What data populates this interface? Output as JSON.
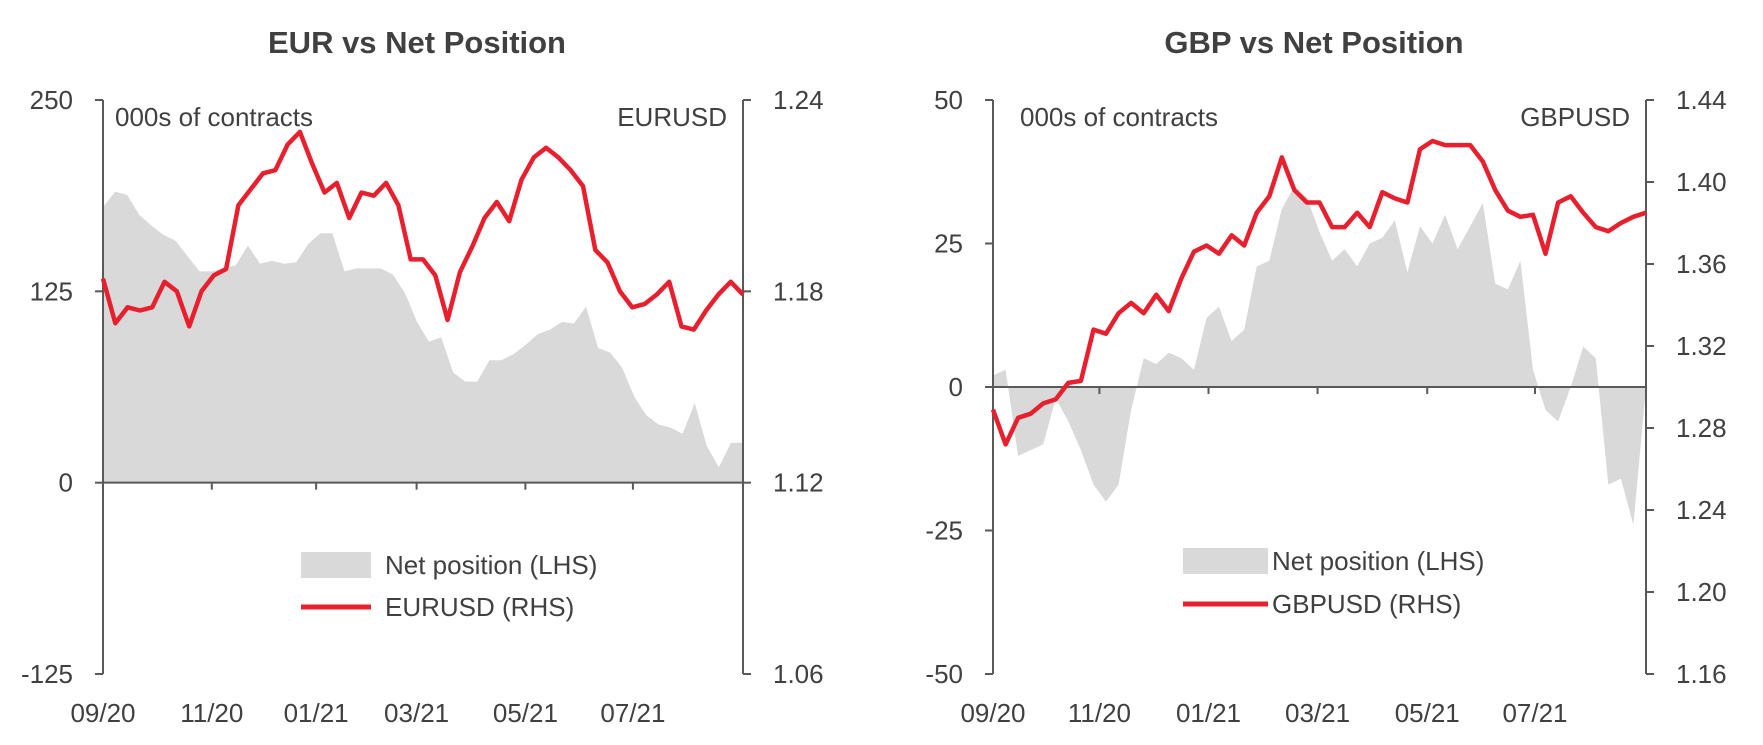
{
  "chart_data": [
    {
      "type": "area",
      "title": "EUR vs Net Position",
      "left_axis_note": "000s of contracts",
      "right_axis_note": "EURUSD",
      "ylim_left": [
        -125,
        250
      ],
      "yticks_left": [
        "-125",
        "0",
        "125",
        "250"
      ],
      "ylim_right": [
        1.06,
        1.24
      ],
      "yticks_right": [
        "1.06",
        "1.12",
        "1.18",
        "1.24"
      ],
      "x_tick_labels": [
        "09/20",
        "11/20",
        "01/21",
        "03/21",
        "05/21",
        "07/21"
      ],
      "legend": [
        "Net position (LHS)",
        "EURUSD (RHS)"
      ],
      "colors": {
        "net_position": "#d9d9d9",
        "price": "#e8202e",
        "axis": "#595959"
      },
      "series": [
        {
          "name": "Net position (LHS)",
          "axis": "left",
          "values": [
            180,
            190,
            188,
            175,
            168,
            162,
            158,
            148,
            138,
            138,
            140,
            142,
            155,
            143,
            145,
            143,
            144,
            156,
            163,
            163,
            138,
            140,
            140,
            140,
            136,
            124,
            105,
            92,
            95,
            72,
            66,
            66,
            80,
            80,
            84,
            90,
            97,
            100,
            105,
            104,
            115,
            88,
            85,
            75,
            56,
            44,
            38,
            36,
            32,
            52,
            24,
            10,
            26,
            26
          ]
        },
        {
          "name": "EURUSD (RHS)",
          "axis": "right",
          "values": [
            1.184,
            1.17,
            1.175,
            1.174,
            1.175,
            1.183,
            1.18,
            1.169,
            1.18,
            1.185,
            1.187,
            1.207,
            1.212,
            1.217,
            1.218,
            1.226,
            1.23,
            1.22,
            1.211,
            1.214,
            1.203,
            1.211,
            1.21,
            1.214,
            1.207,
            1.19,
            1.19,
            1.185,
            1.171,
            1.186,
            1.194,
            1.203,
            1.208,
            1.202,
            1.215,
            1.222,
            1.225,
            1.222,
            1.218,
            1.213,
            1.193,
            1.189,
            1.18,
            1.175,
            1.176,
            1.179,
            1.183,
            1.169,
            1.168,
            1.174,
            1.179,
            1.183,
            1.179
          ]
        }
      ]
    },
    {
      "type": "area",
      "title": "GBP vs Net Position",
      "left_axis_note": "000s of contracts",
      "right_axis_note": "GBPUSD",
      "ylim_left": [
        -50,
        50
      ],
      "yticks_left": [
        "-50",
        "-25",
        "0",
        "25",
        "50"
      ],
      "ylim_right": [
        1.16,
        1.44
      ],
      "yticks_right": [
        "1.16",
        "1.20",
        "1.24",
        "1.28",
        "1.32",
        "1.36",
        "1.40",
        "1.44"
      ],
      "x_tick_labels": [
        "09/20",
        "11/20",
        "01/21",
        "03/21",
        "05/21",
        "07/21"
      ],
      "legend": [
        "Net position (LHS)",
        "GBPUSD (RHS)"
      ],
      "colors": {
        "net_position": "#d9d9d9",
        "price": "#e8202e",
        "axis": "#595959"
      },
      "series": [
        {
          "name": "Net position (LHS)",
          "axis": "left",
          "values": [
            2,
            3,
            -12,
            -11,
            -10,
            -2,
            -6,
            -11,
            -17,
            -20,
            -17,
            -4,
            5,
            4,
            6,
            5,
            3,
            12,
            14,
            8,
            10,
            21,
            22,
            31,
            35,
            33,
            27,
            22,
            24,
            21,
            25,
            26,
            29,
            20,
            28,
            25,
            30,
            24,
            28,
            32,
            18,
            17,
            22,
            3,
            -4,
            -6,
            0,
            7,
            5,
            -17,
            -16,
            -24,
            0
          ]
        },
        {
          "name": "GBPUSD (RHS)",
          "axis": "right",
          "values": [
            1.289,
            1.272,
            1.285,
            1.287,
            1.292,
            1.294,
            1.302,
            1.303,
            1.328,
            1.326,
            1.336,
            1.341,
            1.336,
            1.345,
            1.337,
            1.353,
            1.366,
            1.369,
            1.365,
            1.374,
            1.369,
            1.385,
            1.393,
            1.412,
            1.396,
            1.39,
            1.39,
            1.378,
            1.378,
            1.385,
            1.378,
            1.395,
            1.392,
            1.39,
            1.416,
            1.42,
            1.418,
            1.418,
            1.418,
            1.41,
            1.396,
            1.386,
            1.383,
            1.384,
            1.365,
            1.39,
            1.393,
            1.385,
            1.378,
            1.376,
            1.38,
            1.383,
            1.385
          ]
        }
      ]
    }
  ]
}
